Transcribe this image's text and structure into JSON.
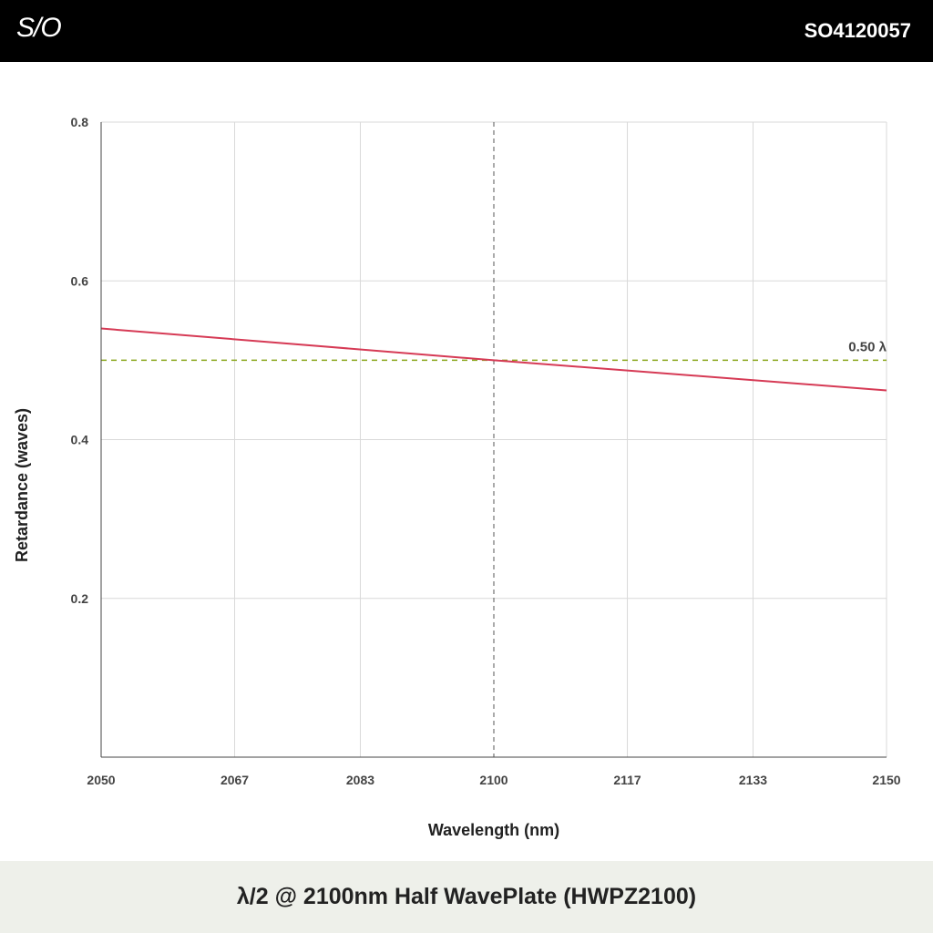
{
  "header": {
    "logo_text": "S/O",
    "part_number": "SO4120057"
  },
  "footer": {
    "title": "λ/2 @ 2100nm Half WavePlate (HWPZ2100)"
  },
  "colors": {
    "series_line": "#d63a55",
    "reference_line": "#8aa61c",
    "center_line": "#555555",
    "grid": "#d9d9d9",
    "axis": "#444444"
  },
  "chart_data": {
    "type": "line",
    "xlabel": "Wavelength (nm)",
    "ylabel": "Retardance (waves)",
    "xlim": [
      2050,
      2150
    ],
    "ylim": [
      0,
      0.8
    ],
    "x_ticks": [
      2050,
      2067,
      2083,
      2100,
      2117,
      2133,
      2150
    ],
    "y_ticks": [
      0.2,
      0.4,
      0.6,
      0.8
    ],
    "y_tick_labels": [
      "0.2",
      "0.4",
      "0.6",
      "0.8"
    ],
    "grid": true,
    "series": [
      {
        "x": [
          2050,
          2100,
          2150
        ],
        "y": [
          0.54,
          0.5,
          0.462
        ]
      }
    ],
    "reference_lines": [
      {
        "orientation": "horizontal",
        "value": 0.5,
        "label": "0.50 λ",
        "style": "dashed"
      },
      {
        "orientation": "vertical",
        "value": 2100,
        "style": "dashed"
      }
    ]
  }
}
